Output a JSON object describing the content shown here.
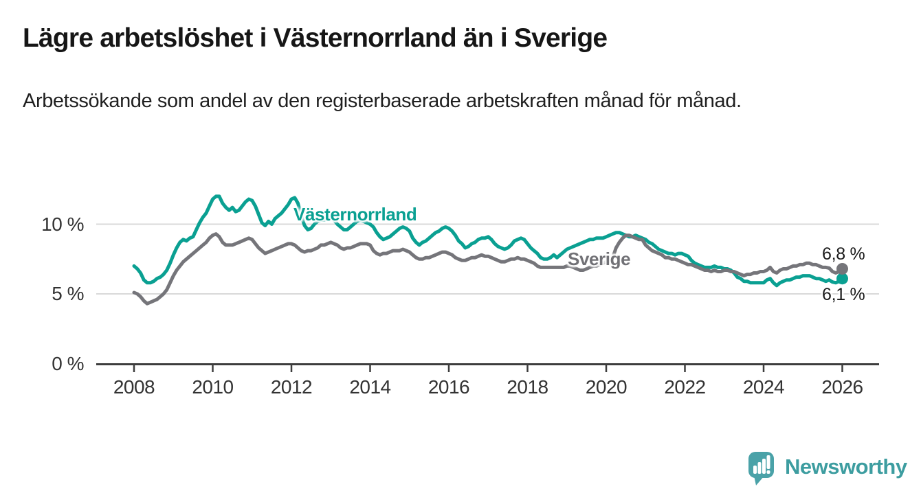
{
  "header": {
    "title": "Lägre arbetslöshet i Västernorrland än i Sverige",
    "subtitle": "Arbetssökande som andel av den registerbaserade arbetskraften månad för månad."
  },
  "footer": {
    "brand": "Newsworthy",
    "brand_color": "#3d9da0",
    "logo_icon": "speech-bubble-bar-chart-icon",
    "logo_bubble_color": "#4aa2a8"
  },
  "chart_data": {
    "type": "line",
    "title": "Lägre arbetslöshet i Västernorrland än i Sverige",
    "subtitle": "Arbetssökande som andel av den registerbaserade arbetskraften månad för månad.",
    "unit": "%",
    "grid": "horizontal",
    "grid_color": "#d9d9d9",
    "axis_color": "#3d3d3d",
    "tick_label_color": "#333333",
    "x_start": 2008,
    "x_end": 2026.0,
    "points_per_month": 1,
    "xticks": [
      2008,
      2010,
      2012,
      2014,
      2016,
      2018,
      2020,
      2022,
      2024,
      2026
    ],
    "yticks": [
      0,
      5,
      10
    ],
    "ytick_labels": [
      "0 %",
      "5 %",
      "10 %"
    ],
    "ylim": [
      0,
      12.6
    ],
    "legend_position": "inline-labels",
    "series": [
      {
        "name": "Västernorrland",
        "color": "#0aa092",
        "end_label": "6,1 %",
        "end_value": 6.1,
        "values": [
          7.0,
          6.8,
          6.5,
          6.0,
          5.8,
          5.8,
          5.9,
          6.1,
          6.2,
          6.4,
          6.7,
          7.2,
          7.8,
          8.3,
          8.7,
          8.9,
          8.8,
          9.0,
          9.1,
          9.6,
          10.1,
          10.5,
          10.8,
          11.3,
          11.8,
          12.0,
          12.0,
          11.5,
          11.2,
          11.0,
          11.2,
          10.9,
          11.0,
          11.3,
          11.6,
          11.8,
          11.7,
          11.3,
          10.7,
          10.1,
          9.9,
          10.2,
          10.0,
          10.4,
          10.6,
          10.8,
          11.1,
          11.4,
          11.8,
          11.9,
          11.5,
          10.6,
          9.9,
          9.6,
          9.7,
          10.0,
          10.2,
          10.3,
          10.3,
          10.4,
          10.5,
          10.3,
          10.0,
          9.8,
          9.6,
          9.6,
          9.8,
          10.0,
          10.2,
          10.3,
          10.2,
          10.1,
          10.0,
          9.8,
          9.4,
          9.1,
          8.9,
          9.0,
          9.1,
          9.3,
          9.5,
          9.7,
          9.8,
          9.7,
          9.5,
          9.0,
          8.7,
          8.5,
          8.7,
          8.8,
          9.0,
          9.2,
          9.4,
          9.5,
          9.7,
          9.8,
          9.7,
          9.5,
          9.2,
          8.8,
          8.6,
          8.3,
          8.4,
          8.6,
          8.7,
          8.9,
          9.0,
          9.0,
          9.1,
          8.9,
          8.6,
          8.4,
          8.3,
          8.2,
          8.3,
          8.5,
          8.8,
          8.9,
          9.0,
          8.9,
          8.6,
          8.3,
          8.1,
          7.9,
          7.6,
          7.5,
          7.5,
          7.6,
          7.8,
          7.6,
          7.8,
          8.0,
          8.2,
          8.3,
          8.4,
          8.5,
          8.6,
          8.7,
          8.8,
          8.9,
          8.9,
          9.0,
          9.0,
          9.0,
          9.1,
          9.2,
          9.3,
          9.4,
          9.4,
          9.3,
          9.2,
          9.1,
          9.1,
          9.2,
          9.1,
          9.0,
          8.9,
          8.7,
          8.6,
          8.4,
          8.2,
          8.1,
          8.0,
          7.9,
          7.9,
          7.8,
          7.9,
          7.9,
          7.8,
          7.7,
          7.4,
          7.2,
          7.1,
          7.0,
          6.9,
          6.9,
          6.9,
          7.0,
          6.9,
          6.9,
          6.8,
          6.8,
          6.7,
          6.5,
          6.2,
          6.1,
          5.9,
          5.9,
          5.8,
          5.8,
          5.8,
          5.8,
          5.8,
          6.0,
          6.1,
          5.8,
          5.6,
          5.8,
          5.9,
          6.0,
          6.0,
          6.1,
          6.2,
          6.2,
          6.3,
          6.3,
          6.3,
          6.2,
          6.1,
          6.1,
          6.0,
          5.9,
          6.0,
          5.85,
          5.8,
          5.9,
          6.1
        ]
      },
      {
        "name": "Sverige",
        "color": "#75757a",
        "end_label": "6,8 %",
        "end_value": 6.8,
        "values": [
          5.1,
          5.0,
          4.8,
          4.5,
          4.3,
          4.4,
          4.5,
          4.6,
          4.8,
          5.0,
          5.3,
          5.8,
          6.3,
          6.7,
          7.0,
          7.3,
          7.5,
          7.7,
          7.9,
          8.1,
          8.3,
          8.5,
          8.7,
          9.0,
          9.2,
          9.3,
          9.1,
          8.7,
          8.5,
          8.5,
          8.5,
          8.6,
          8.7,
          8.8,
          8.9,
          9.0,
          8.9,
          8.6,
          8.3,
          8.1,
          7.9,
          8.0,
          8.1,
          8.2,
          8.3,
          8.4,
          8.5,
          8.6,
          8.6,
          8.5,
          8.3,
          8.1,
          8.0,
          8.1,
          8.1,
          8.2,
          8.3,
          8.5,
          8.5,
          8.6,
          8.7,
          8.6,
          8.5,
          8.3,
          8.2,
          8.3,
          8.3,
          8.4,
          8.5,
          8.6,
          8.6,
          8.6,
          8.5,
          8.1,
          7.9,
          7.8,
          7.9,
          7.9,
          8.0,
          8.1,
          8.1,
          8.1,
          8.2,
          8.1,
          8.0,
          7.8,
          7.6,
          7.5,
          7.5,
          7.6,
          7.6,
          7.7,
          7.8,
          7.9,
          8.0,
          8.0,
          7.9,
          7.8,
          7.6,
          7.5,
          7.4,
          7.4,
          7.5,
          7.6,
          7.6,
          7.7,
          7.8,
          7.7,
          7.7,
          7.6,
          7.5,
          7.4,
          7.3,
          7.3,
          7.4,
          7.5,
          7.5,
          7.6,
          7.5,
          7.5,
          7.4,
          7.3,
          7.2,
          7.0,
          6.9,
          6.9,
          6.9,
          6.9,
          6.9,
          6.9,
          6.9,
          6.9,
          7.0,
          7.0,
          6.9,
          6.8,
          6.7,
          6.7,
          6.8,
          6.9,
          7.0,
          7.0,
          7.1,
          7.2,
          7.3,
          7.4,
          7.6,
          8.3,
          8.7,
          9.0,
          9.2,
          9.2,
          9.1,
          9.0,
          8.9,
          8.9,
          8.5,
          8.3,
          8.1,
          8.0,
          7.9,
          7.8,
          7.6,
          7.6,
          7.5,
          7.5,
          7.4,
          7.3,
          7.2,
          7.1,
          7.1,
          7.0,
          6.9,
          6.8,
          6.7,
          6.7,
          6.6,
          6.7,
          6.6,
          6.6,
          6.7,
          6.7,
          6.6,
          6.6,
          6.5,
          6.4,
          6.3,
          6.4,
          6.4,
          6.5,
          6.5,
          6.6,
          6.6,
          6.7,
          6.9,
          6.6,
          6.5,
          6.7,
          6.8,
          6.8,
          6.9,
          7.0,
          7.0,
          7.1,
          7.1,
          7.2,
          7.2,
          7.1,
          7.1,
          7.0,
          6.9,
          6.9,
          6.85,
          6.6,
          6.5,
          6.6,
          6.8
        ]
      }
    ]
  }
}
